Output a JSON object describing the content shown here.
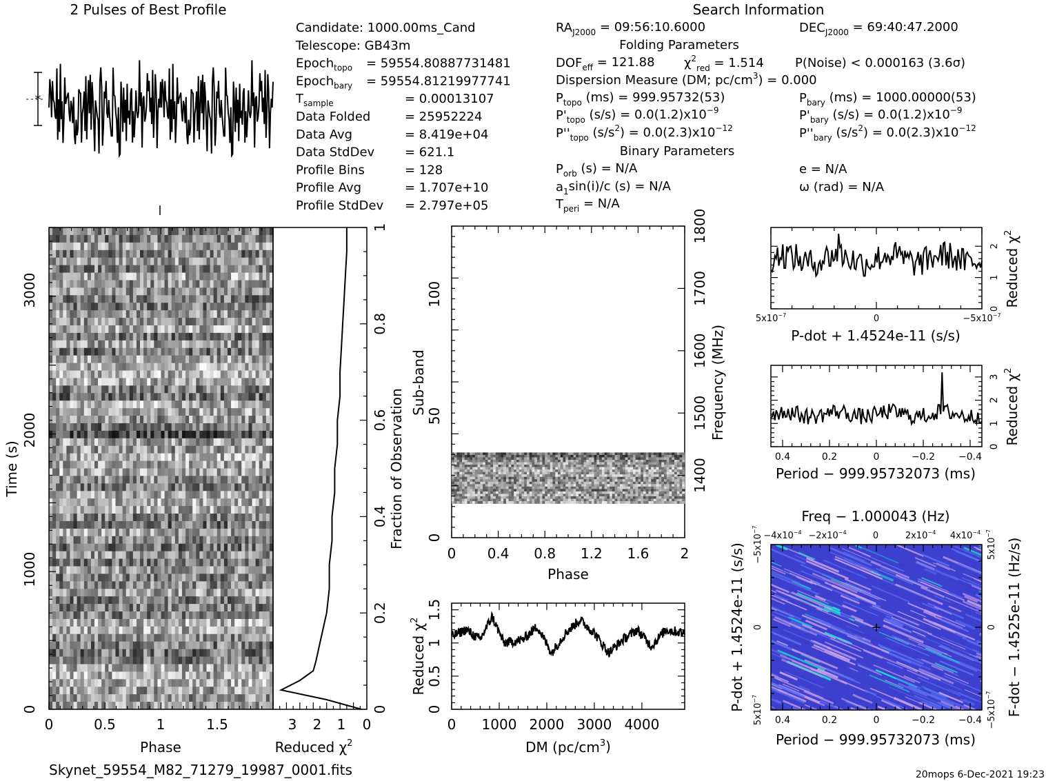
{
  "profile_title": "2 Pulses of Best Profile",
  "search_title": "Search Information",
  "footer": {
    "filename": "Skynet_59554_M82_71279_19987_0001.fits",
    "stamp": "20mops   6-Dec-2021 19:23"
  },
  "candidate_info": [
    {
      "label": "Candidate:  1000.00ms_Cand",
      "sub": "",
      "value": ""
    },
    {
      "label": "Telescope:  GB43m",
      "sub": "",
      "value": ""
    },
    {
      "label": "Epoch",
      "sub": "topo",
      "value": "= 59554.80887731481"
    },
    {
      "label": "Epoch",
      "sub": "bary",
      "value": "= 59554.81219977741"
    },
    {
      "label": "T",
      "sub": "sample",
      "value": "=   0.00013107"
    },
    {
      "label": "Data Folded",
      "sub": "",
      "value": "=   25952224"
    },
    {
      "label": "Data Avg",
      "sub": "",
      "value": "=   8.419e+04"
    },
    {
      "label": "Data StdDev",
      "sub": "",
      "value": "=   621.1"
    },
    {
      "label": "Profile Bins",
      "sub": "",
      "value": "=   128"
    },
    {
      "label": "Profile Avg",
      "sub": "",
      "value": "=   1.707e+10"
    },
    {
      "label": "Profile StdDev",
      "sub": "",
      "value": "=   2.797e+05"
    }
  ],
  "search_info": {
    "ra": {
      "label": "RA",
      "sub": "J2000",
      "value": "= 09:56:10.6000"
    },
    "dec": {
      "label": "DEC",
      "sub": "J2000",
      "value": "= 69:40:47.2000"
    },
    "folding_header": "Folding Parameters",
    "dof": {
      "label": "DOF",
      "sub": "eff",
      "value": "= 121.88"
    },
    "chi": {
      "label": "χ",
      "sup": "2",
      "sub": "red",
      "value": "= 1.514"
    },
    "pnoise": "P(Noise) < 0.000163   (3.6σ)",
    "dm_line": "Dispersion Measure (DM; pc/cm",
    "dm_sup": "3",
    "dm_value": ") = 0.000",
    "ptopo": {
      "label": "P",
      "sub": "topo",
      "value": "(ms) =  999.95732(53)"
    },
    "pbary": {
      "label": "P",
      "sub": "bary",
      "value": "(ms) =  1000.00000(53)"
    },
    "pdtopo": {
      "label": "P'",
      "sub": "topo",
      "value": "(s/s) = 0.0(1.2)x10",
      "exp": "−9"
    },
    "pdbary": {
      "label": "P'",
      "sub": "bary",
      "value": "(s/s) = 0.0(1.2)x10",
      "exp": "−9"
    },
    "pddtopo": {
      "label": "P''",
      "sub": "topo",
      "value": "(s/s",
      "sup2": "2",
      "value2": ") = 0.0(2.3)x10",
      "exp": "−12"
    },
    "pddbary": {
      "label": "P''",
      "sub": "bary",
      "value": "(s/s",
      "sup2": "2",
      "value2": ") = 0.0(2.3)x10",
      "exp": "−12"
    },
    "binary_header": "Binary Parameters",
    "porb": {
      "label": "P",
      "sub": "orb",
      "value": "(s) = N/A"
    },
    "ecc": "e = N/A",
    "a1": {
      "label": "a",
      "sub": "1",
      "value": "sin(i)/c (s) = N/A"
    },
    "omega": "ω (rad) = N/A",
    "tperi": {
      "label": "T",
      "sub": "peri",
      "value": "= N/A"
    }
  },
  "chart_data": [
    {
      "id": "profile",
      "type": "line",
      "title": "2 Pulses of Best Profile",
      "xlim": [
        0,
        2
      ],
      "note": "two repeated noise-like pulse profiles, 128 bins each, no significant peak"
    },
    {
      "id": "time_phase",
      "type": "heatmap",
      "xlabel": "Phase",
      "ylabel": "Time (s)",
      "xlim": [
        0,
        2
      ],
      "ylim": [
        0,
        3450
      ],
      "xticks": [
        "0",
        "0.5",
        "1",
        "1.5"
      ],
      "yticks": [
        "0",
        "1000",
        "2000",
        "3000"
      ]
    },
    {
      "id": "time_chi2",
      "type": "line",
      "xlabel": "Reduced χ",
      "xlabel_sup": "2",
      "ylabel": "Fraction of Observation",
      "xlim": [
        3.5,
        0
      ],
      "ylim": [
        0,
        1
      ],
      "xticks": [
        "3",
        "2",
        "1",
        "0"
      ],
      "yticks": [
        "0",
        "0.2",
        "0.4",
        "0.6",
        "0.8",
        "1"
      ],
      "points": [
        {
          "chi2": 0.2,
          "frac": 0.0
        },
        {
          "chi2": 1.5,
          "frac": 0.02
        },
        {
          "chi2": 3.2,
          "frac": 0.04
        },
        {
          "chi2": 2.5,
          "frac": 0.06
        },
        {
          "chi2": 2.0,
          "frac": 0.08
        },
        {
          "chi2": 1.9,
          "frac": 0.1
        },
        {
          "chi2": 1.7,
          "frac": 0.15
        },
        {
          "chi2": 1.5,
          "frac": 0.2
        },
        {
          "chi2": 1.4,
          "frac": 0.25
        },
        {
          "chi2": 1.4,
          "frac": 0.3
        },
        {
          "chi2": 1.3,
          "frac": 0.35
        },
        {
          "chi2": 1.3,
          "frac": 0.4
        },
        {
          "chi2": 1.2,
          "frac": 0.45
        },
        {
          "chi2": 1.2,
          "frac": 0.5
        },
        {
          "chi2": 1.1,
          "frac": 0.55
        },
        {
          "chi2": 1.1,
          "frac": 0.6
        },
        {
          "chi2": 1.0,
          "frac": 0.65
        },
        {
          "chi2": 1.0,
          "frac": 0.7
        },
        {
          "chi2": 0.95,
          "frac": 0.75
        },
        {
          "chi2": 0.9,
          "frac": 0.8
        },
        {
          "chi2": 0.85,
          "frac": 0.85
        },
        {
          "chi2": 0.8,
          "frac": 0.9
        },
        {
          "chi2": 0.75,
          "frac": 0.95
        },
        {
          "chi2": 0.75,
          "frac": 1.0
        }
      ]
    },
    {
      "id": "subband_phase",
      "type": "heatmap",
      "xlabel": "Phase",
      "ylabel": "Sub-band",
      "ylabel_right": "Frequency (MHz)",
      "xlim": [
        0,
        2
      ],
      "ylim": [
        0,
        128
      ],
      "ylim_right": [
        1300,
        1800
      ],
      "filled_subbands": [
        14,
        35
      ],
      "xticks": [
        "0",
        "0.4",
        "0.8",
        "1.2",
        "1.6",
        "2"
      ],
      "yticks": [
        "0",
        "50",
        "100"
      ],
      "yticks_right": [
        "1400",
        "1500",
        "1600",
        "1700",
        "1800"
      ]
    },
    {
      "id": "dm_chi2",
      "type": "line",
      "xlabel": "DM (pc/cm",
      "xlabel_sup": "3",
      "ylabel": "Reduced χ",
      "ylabel_sup": "2",
      "xlim": [
        0,
        4900
      ],
      "ylim": [
        0,
        1.6
      ],
      "xticks": [
        "0",
        "1000",
        "2000",
        "3000",
        "4000"
      ],
      "yticks": [
        "0",
        "0.5",
        "1",
        "1.5"
      ],
      "points": [
        {
          "x": 0,
          "y": 1.1
        },
        {
          "x": 300,
          "y": 1.2
        },
        {
          "x": 600,
          "y": 1.05
        },
        {
          "x": 850,
          "y": 1.4
        },
        {
          "x": 1100,
          "y": 1.0
        },
        {
          "x": 1500,
          "y": 1.05
        },
        {
          "x": 1800,
          "y": 1.25
        },
        {
          "x": 2100,
          "y": 0.85
        },
        {
          "x": 2400,
          "y": 1.15
        },
        {
          "x": 2700,
          "y": 1.35
        },
        {
          "x": 3000,
          "y": 1.15
        },
        {
          "x": 3300,
          "y": 0.85
        },
        {
          "x": 3600,
          "y": 1.05
        },
        {
          "x": 3900,
          "y": 1.2
        },
        {
          "x": 4200,
          "y": 0.95
        },
        {
          "x": 4500,
          "y": 1.2
        },
        {
          "x": 4900,
          "y": 1.15
        }
      ]
    },
    {
      "id": "pdot_chi2",
      "type": "line",
      "xlabel": "P-dot + 1.4524e-11 (s/s)",
      "ylabel": "Reduced χ",
      "ylabel_sup": "2",
      "xlim": [
        5e-07,
        -5e-07
      ],
      "ylim": [
        0,
        2.6
      ],
      "xticks": [
        "5x10",
        "0",
        "−5x10"
      ],
      "xticks_exp": [
        "−7",
        "",
        "−7"
      ],
      "yticks": [
        "0",
        "1",
        "2"
      ],
      "peak_x": 3e-07,
      "peak_y": 2.4
    },
    {
      "id": "period_chi2",
      "type": "line",
      "xlabel": "Period − 999.95732073 (ms)",
      "ylabel": "Reduced χ",
      "ylabel_sup": "2",
      "xlim": [
        0.45,
        -0.45
      ],
      "ylim": [
        0,
        3.5
      ],
      "xticks": [
        "0.4",
        "0.2",
        "0",
        "−0.2",
        "−0.4"
      ],
      "yticks": [
        "0",
        "1",
        "2",
        "3"
      ],
      "peak_x": -0.28,
      "peak_y": 3.2
    },
    {
      "id": "p_pdot_plane",
      "type": "heatmap",
      "title": "Freq − 1.000043 (Hz)",
      "xlabel": "Period − 999.95732073 (ms)",
      "ylabel": "P-dot + 1.4524e-11 (s/s)",
      "ylabel_right": "F-dot − 1.4525e-11 (Hz/s)",
      "xlim": [
        0.45,
        -0.45
      ],
      "ylim": [
        5e-07,
        -5e-07
      ],
      "xticks": [
        "0.4",
        "0.2",
        "0",
        "−0.2",
        "−0.4"
      ],
      "top_ticks": [
        "−4x10",
        "−2x10",
        "0",
        "2x10",
        "4x10"
      ],
      "top_ticks_exp": [
        "−4",
        "−4",
        "",
        "−4",
        "−4"
      ],
      "left_ticks": [
        "−5x10",
        "0",
        "5x10"
      ],
      "left_ticks_exp": [
        "−7",
        "",
        "−7"
      ],
      "right_ticks": [
        "5x10",
        "0",
        "−5x10"
      ],
      "right_ticks_exp": [
        "−7",
        "",
        "−7"
      ],
      "best_x": 0,
      "best_y": 0,
      "colors": {
        "low": "#3a3ccc",
        "mid": "#5a6ef0",
        "high": "#1fe0d0",
        "ridge": "#c8a0e8"
      }
    }
  ]
}
